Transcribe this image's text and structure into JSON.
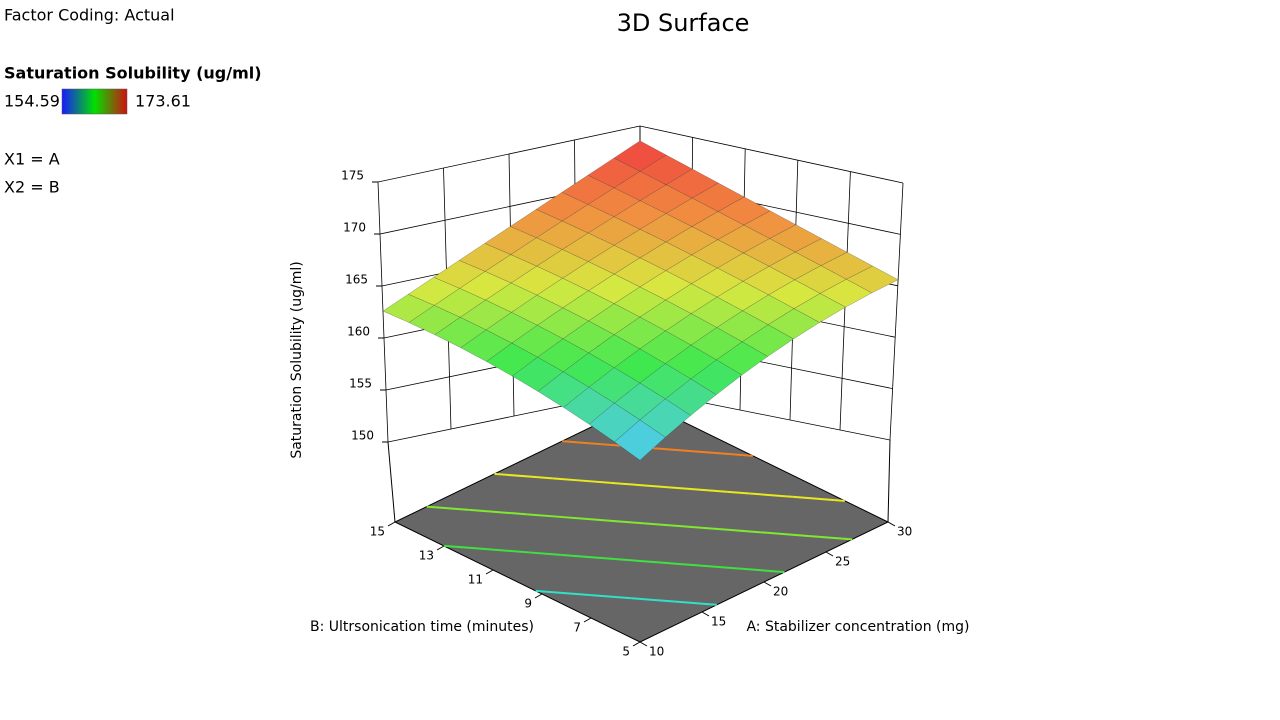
{
  "chart_data": {
    "type": "surface3d",
    "title": "3D Surface",
    "factor_coding": "Factor Coding: Actual",
    "colorbar": {
      "title": "Saturation Solubility (ug/ml)",
      "min": 154.59,
      "max": 173.61,
      "colors": [
        "#1a1aff",
        "#00e000",
        "#d01010"
      ]
    },
    "factor_labels": [
      "X1 = A",
      "X2 = B"
    ],
    "xlabel": "A: Stabilizer concentration (mg)",
    "ylabel": "B: Ultrsonication time (minutes)",
    "zlabel": "Saturation Solubility (ug/ml)",
    "xlim": [
      10,
      30
    ],
    "xticks": [
      10,
      15,
      20,
      25,
      30
    ],
    "ylim": [
      5,
      15
    ],
    "yticks": [
      5,
      7,
      9,
      11,
      13,
      15
    ],
    "zlim": [
      150,
      175
    ],
    "zticks": [
      150,
      155,
      160,
      165,
      170,
      175
    ],
    "x": [
      10,
      12,
      14,
      16,
      18,
      20,
      22,
      24,
      26,
      28,
      30
    ],
    "y": [
      5,
      6,
      7,
      8,
      9,
      10,
      11,
      12,
      13,
      14,
      15
    ],
    "z": [
      [
        154.59,
        155.69,
        156.79,
        157.89,
        158.99,
        160.09,
        161.19,
        162.29,
        163.39,
        164.49,
        165.59
      ],
      [
        155.39,
        156.49,
        157.59,
        158.69,
        159.79,
        160.89,
        161.99,
        163.09,
        164.19,
        165.29,
        166.39
      ],
      [
        156.19,
        157.29,
        158.39,
        159.49,
        160.59,
        161.69,
        162.79,
        163.89,
        164.99,
        166.09,
        167.19
      ],
      [
        156.99,
        158.09,
        159.19,
        160.29,
        161.39,
        162.49,
        163.59,
        164.69,
        165.79,
        166.89,
        167.99
      ],
      [
        157.79,
        158.89,
        159.99,
        161.09,
        162.19,
        163.29,
        164.39,
        165.49,
        166.59,
        167.69,
        168.79
      ],
      [
        158.59,
        159.69,
        160.79,
        161.89,
        162.99,
        164.09,
        165.19,
        166.29,
        167.39,
        168.49,
        169.59
      ],
      [
        159.39,
        160.49,
        161.59,
        162.69,
        163.79,
        164.89,
        165.99,
        167.09,
        168.19,
        169.29,
        170.39
      ],
      [
        160.19,
        161.29,
        162.39,
        163.49,
        164.59,
        165.69,
        166.79,
        167.89,
        168.99,
        170.09,
        171.19
      ],
      [
        160.99,
        162.09,
        163.19,
        164.29,
        165.39,
        166.49,
        167.59,
        168.69,
        169.79,
        170.89,
        171.99
      ],
      [
        161.79,
        162.89,
        163.99,
        165.09,
        166.19,
        167.29,
        168.39,
        169.49,
        170.59,
        171.69,
        172.79
      ],
      [
        162.59,
        163.69,
        164.79,
        165.89,
        166.99,
        168.09,
        169.19,
        170.29,
        171.39,
        172.49,
        173.59
      ]
    ],
    "surface_colors": [
      "#50c8ff",
      "#40e850",
      "#d8e840",
      "#f09040",
      "#f04040"
    ],
    "floor_color": "#666666",
    "contours": [
      {
        "level": 158,
        "color": "#30e0c8"
      },
      {
        "level": 161,
        "color": "#40e040"
      },
      {
        "level": 164,
        "color": "#80e830"
      },
      {
        "level": 167,
        "color": "#e8e820"
      },
      {
        "level": 170,
        "color": "#f08020"
      }
    ],
    "grid": true
  }
}
